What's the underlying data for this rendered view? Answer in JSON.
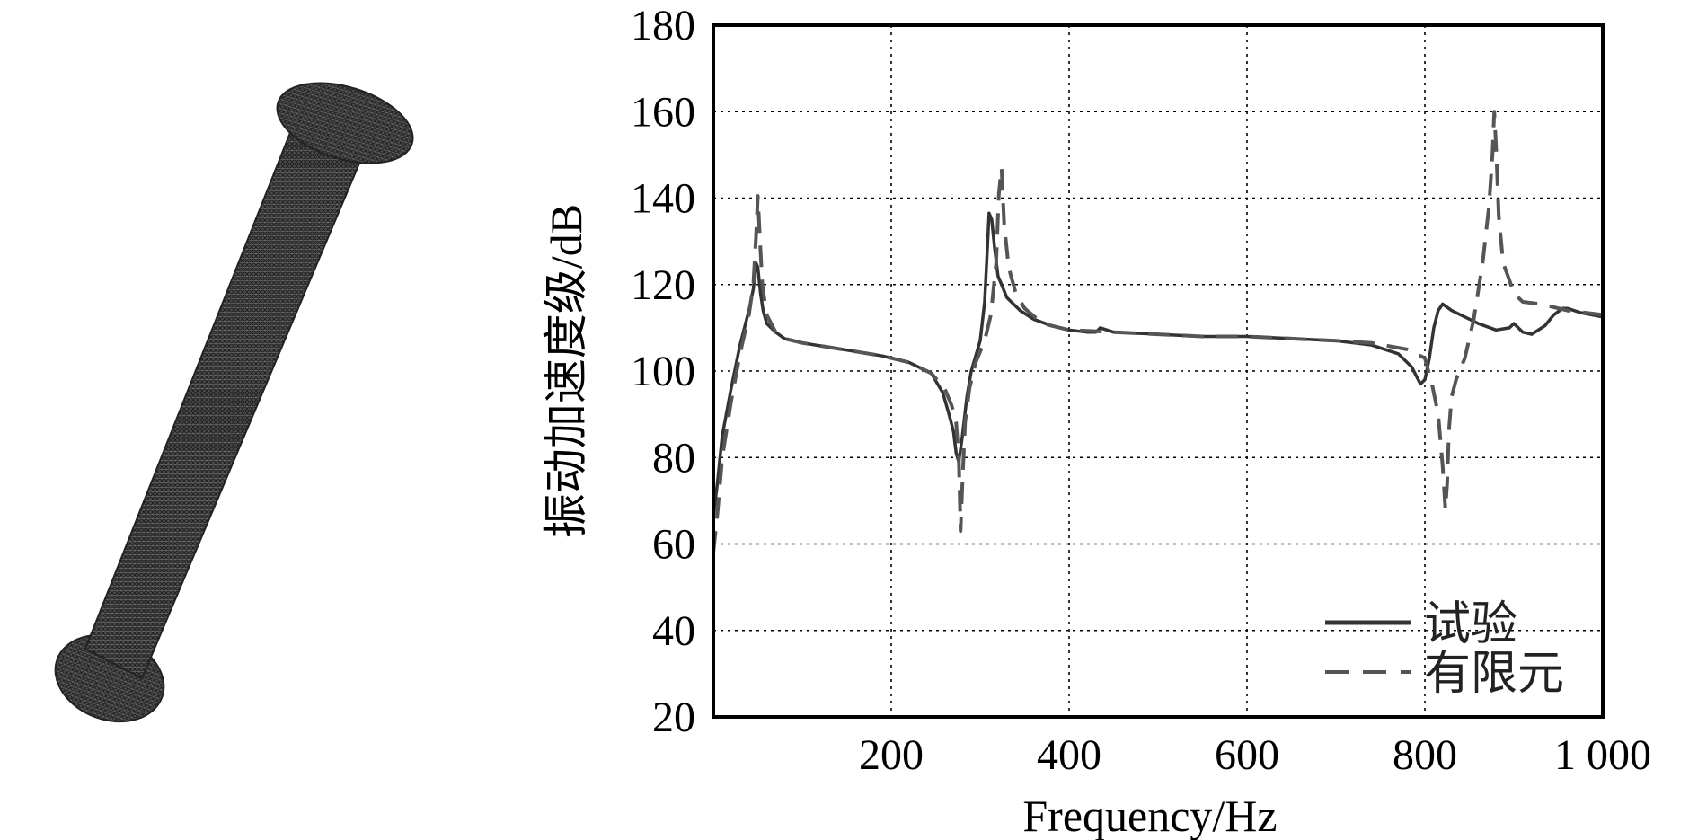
{
  "chart_data": {
    "type": "line",
    "title": "",
    "xlabel": "Frequency/Hz",
    "ylabel": "振动加速度级/dB",
    "xlim": [
      0,
      1000
    ],
    "ylim": [
      20,
      180
    ],
    "x_ticks": [
      200,
      400,
      600,
      800,
      1000
    ],
    "x_tick_labels": [
      "200",
      "400",
      "600",
      "800",
      "1 000"
    ],
    "y_ticks": [
      20,
      40,
      60,
      80,
      100,
      120,
      140,
      160,
      180
    ],
    "y_tick_labels": [
      "20",
      "40",
      "60",
      "80",
      "100",
      "120",
      "140",
      "160",
      "180"
    ],
    "grid": true,
    "legend_position": "bottom-right",
    "series": [
      {
        "name": "试验",
        "style": "solid",
        "color": "#333333",
        "x": [
          0,
          5,
          10,
          20,
          30,
          40,
          45,
          48,
          50,
          53,
          56,
          60,
          70,
          80,
          100,
          130,
          160,
          190,
          220,
          245,
          258,
          265,
          270,
          273,
          276,
          280,
          285,
          290,
          300,
          305,
          308,
          310,
          313,
          316,
          320,
          330,
          345,
          360,
          380,
          400,
          420,
          430,
          435,
          450,
          500,
          550,
          600,
          650,
          700,
          740,
          770,
          785,
          790,
          795,
          800,
          805,
          810,
          815,
          820,
          830,
          845,
          860,
          880,
          895,
          900,
          905,
          910,
          920,
          935,
          945,
          955,
          960,
          975,
          1000
        ],
        "y": [
          66,
          75,
          85,
          96,
          106,
          114,
          119,
          125,
          124,
          118,
          114,
          111,
          109,
          107.5,
          106.5,
          105.5,
          104.5,
          103.5,
          102,
          99.5,
          95,
          90,
          86,
          81,
          79,
          85,
          94,
          100,
          107,
          116,
          128,
          136.5,
          135,
          129,
          122,
          117,
          114,
          112,
          110.5,
          109.5,
          109,
          109,
          110,
          109,
          108.5,
          108,
          108,
          107.5,
          107,
          106,
          104,
          101,
          99,
          97,
          98,
          103,
          110,
          114,
          115.5,
          114,
          112.5,
          111,
          109.5,
          110,
          111,
          110,
          109,
          108.5,
          110.5,
          113,
          114.5,
          114.5,
          113.5,
          112.5
        ]
      },
      {
        "name": "有限元",
        "style": "dashed",
        "color": "#555555",
        "x": [
          0,
          5,
          10,
          20,
          30,
          40,
          45,
          48,
          50,
          52,
          55,
          60,
          70,
          80,
          100,
          130,
          160,
          190,
          220,
          245,
          260,
          268,
          273,
          276,
          278,
          280,
          283,
          288,
          295,
          305,
          312,
          318,
          321,
          324,
          327,
          332,
          340,
          350,
          370,
          400,
          450,
          500,
          550,
          600,
          650,
          700,
          740,
          780,
          800,
          808,
          815,
          820,
          823,
          825,
          827,
          830,
          835,
          845,
          855,
          865,
          872,
          876,
          878,
          880,
          883,
          888,
          895,
          900,
          910,
          930,
          960,
          1000
        ],
        "y": [
          58,
          68,
          80,
          93,
          104,
          113,
          120,
          131,
          140.5,
          132,
          120,
          113,
          109,
          107.5,
          106.5,
          105.5,
          104.5,
          103.5,
          102,
          99.5,
          96,
          92,
          88,
          80,
          63,
          74,
          88,
          96,
          102,
          107,
          113,
          125,
          141,
          147,
          134,
          124,
          118,
          114.5,
          111,
          109.5,
          109,
          108.5,
          108,
          108,
          107.5,
          107,
          106.5,
          105,
          103,
          97,
          90,
          78,
          68,
          74,
          86,
          94,
          98,
          103,
          112,
          125,
          138,
          150,
          160,
          152,
          136,
          125,
          121,
          118,
          116,
          115.5,
          114,
          113
        ]
      }
    ]
  }
}
